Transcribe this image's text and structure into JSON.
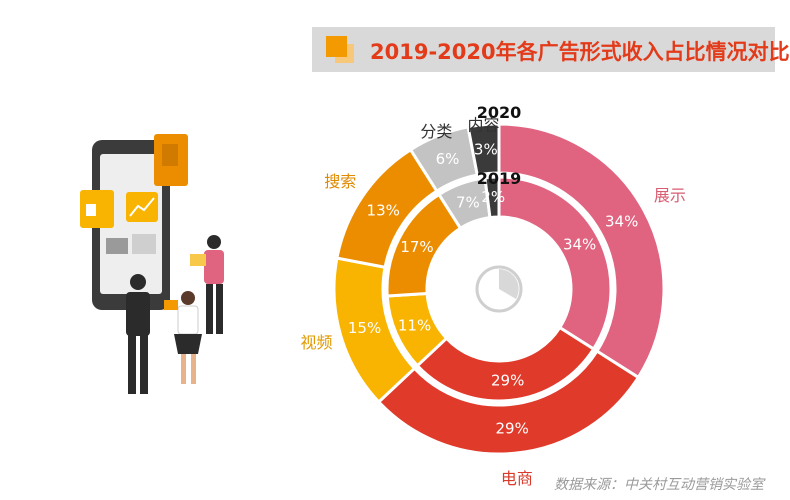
{
  "title": "2019-2020年各广告形式收入占比情况对比",
  "source": "数据来源：中关村互动营销实验室",
  "chart_data": {
    "type": "pie",
    "categories": [
      "展示",
      "电商",
      "视频",
      "搜索",
      "分类",
      "内容"
    ],
    "colors": {
      "展示": "#e06380",
      "电商": "#e03a2a",
      "视频": "#f8b400",
      "搜索": "#ec8d00",
      "分类": "#c3c3c3",
      "内容": "#3a3a3a"
    },
    "label_colors": {
      "展示": "#d95c72",
      "电商": "#d93a2a",
      "视频": "#e09a00",
      "搜索": "#e08a00",
      "分类": "#333333",
      "内容": "#333333"
    },
    "series": [
      {
        "name": "2020",
        "values": [
          34,
          29,
          15,
          13,
          6,
          3
        ]
      },
      {
        "name": "2019",
        "values": [
          34,
          29,
          11,
          17,
          7,
          2
        ]
      }
    ]
  }
}
